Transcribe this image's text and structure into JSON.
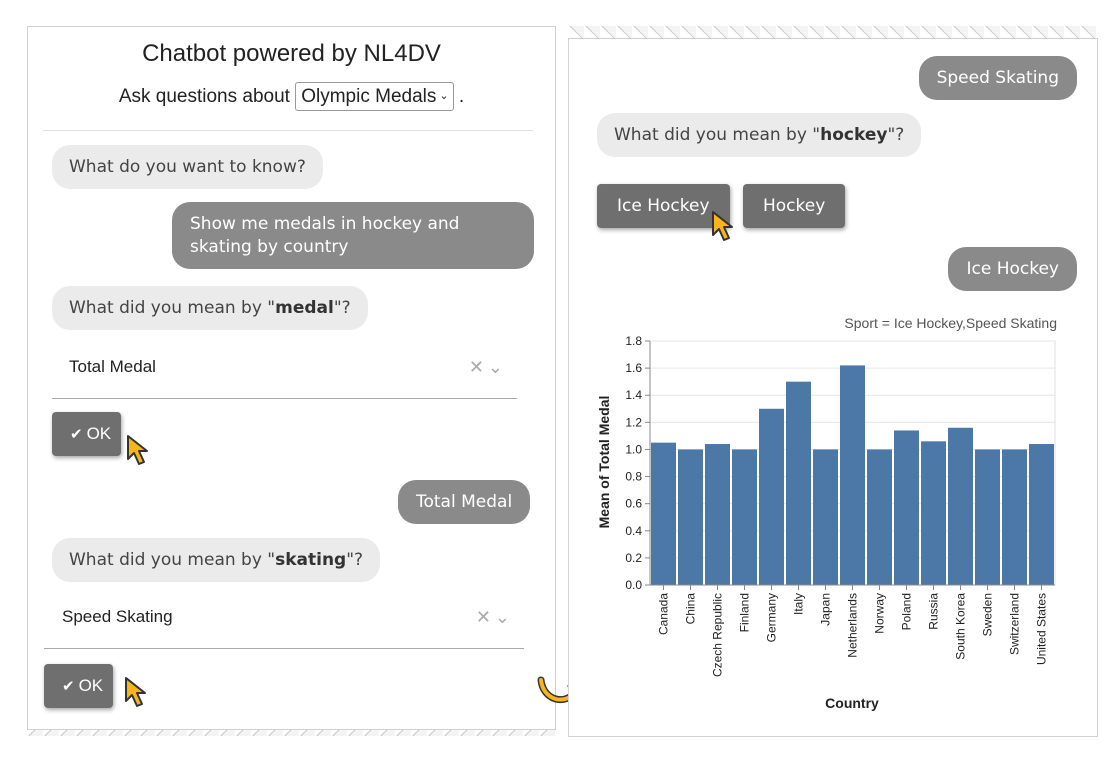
{
  "left": {
    "title": "Chatbot powered by NL4DV",
    "subtitle_prefix": "Ask questions about",
    "dataset_selected": "Olympic Medals",
    "subtitle_suffix": ".",
    "messages": {
      "bot_greeting": "What do you want to know?",
      "user_query": "Show me medals in hockey and skating by country",
      "bot_medal_q_prefix": "What did you mean by \"",
      "bot_medal_q_term": "medal",
      "bot_medal_q_suffix": "\"?",
      "user_medal_reply": "Total Medal",
      "bot_skating_q_prefix": "What did you mean by \"",
      "bot_skating_q_term": "skating",
      "bot_skating_q_suffix": "\"?"
    },
    "medal_select_value": "Total Medal",
    "skating_select_value": "Speed Skating",
    "ok_label": "OK"
  },
  "right": {
    "user_skating_reply": "Speed Skating",
    "bot_hockey_q_prefix": "What did you mean by \"",
    "bot_hockey_q_term": "hockey",
    "bot_hockey_q_suffix": "\"?",
    "choice_1": "Ice Hockey",
    "choice_2": "Hockey",
    "user_hockey_reply": "Ice Hockey"
  },
  "colors": {
    "bar": "#4c78a8",
    "user_bubble": "#8a8a8a",
    "bot_bubble": "#ebebeb",
    "cursor": "#f5b51b"
  },
  "chart_data": {
    "type": "bar",
    "title": "Sport = Ice Hockey,Speed Skating",
    "xlabel": "Country",
    "ylabel": "Mean of Total Medal",
    "ylim": [
      0,
      1.8
    ],
    "yticks": [
      "0.0",
      "0.2",
      "0.4",
      "0.6",
      "0.8",
      "1.0",
      "1.2",
      "1.4",
      "1.6",
      "1.8"
    ],
    "categories": [
      "Canada",
      "China",
      "Czech Republic",
      "Finland",
      "Germany",
      "Italy",
      "Japan",
      "Netherlands",
      "Norway",
      "Poland",
      "Russia",
      "South Korea",
      "Sweden",
      "Switzerland",
      "United States"
    ],
    "values": [
      1.05,
      1.0,
      1.04,
      1.0,
      1.3,
      1.5,
      1.0,
      1.62,
      1.0,
      1.14,
      1.06,
      1.16,
      1.0,
      1.0,
      1.04
    ],
    "grid": true
  }
}
